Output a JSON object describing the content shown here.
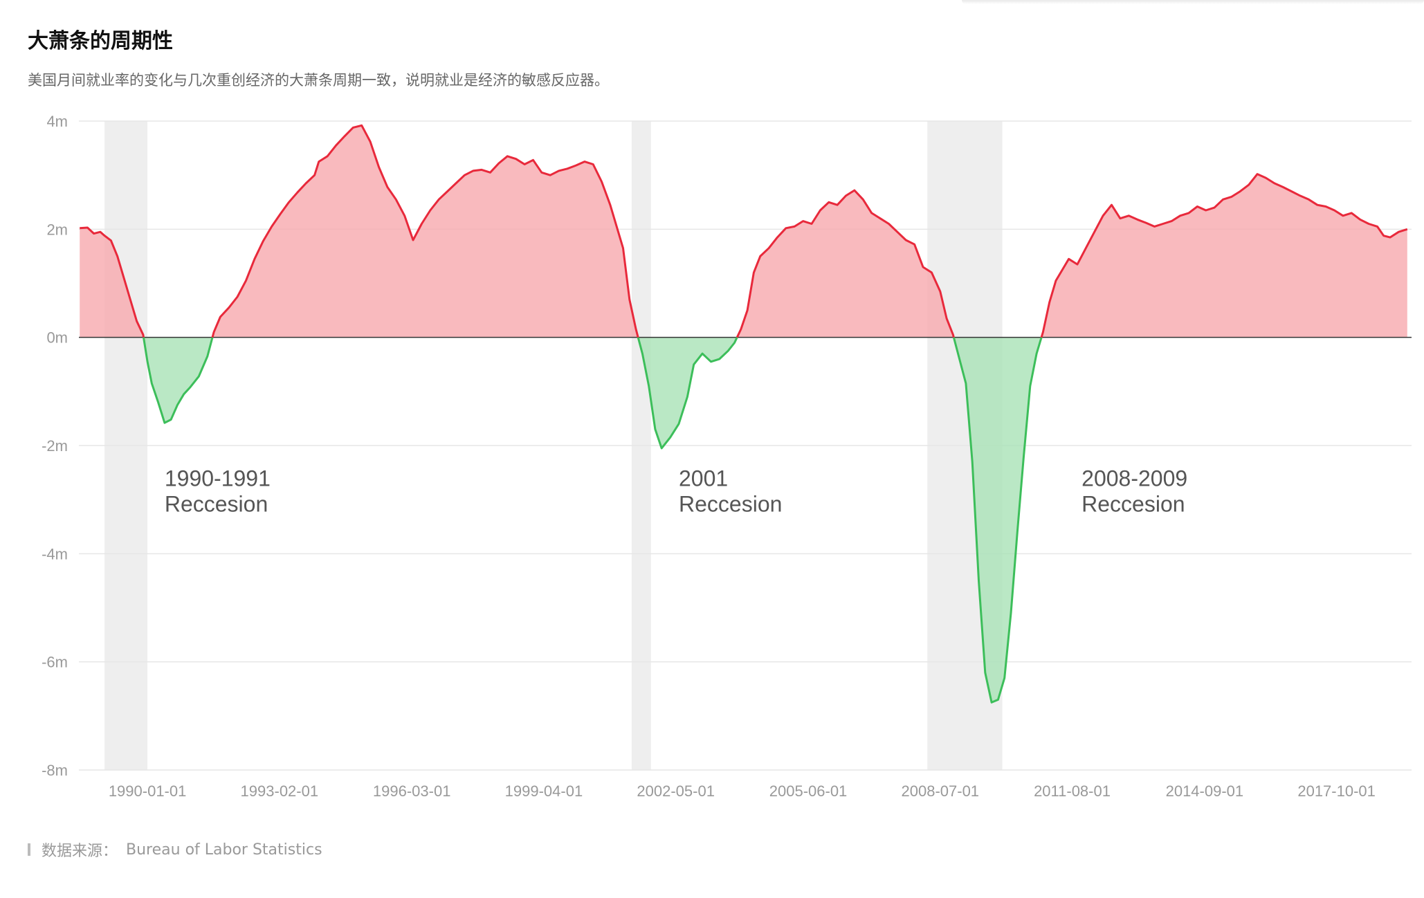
{
  "header": {
    "title": "大萧条的周期性",
    "subtitle": "美国月间就业率的变化与几次重创经济的大萧条周期一致，说明就业是经济的敏感反应器。"
  },
  "footer": {
    "source_label": "数据来源：",
    "source_value": "Bureau of Labor Statistics"
  },
  "colors": {
    "positive_line": "#e8293b",
    "positive_fill": "#f7a9ae",
    "negative_line": "#3cbe5a",
    "negative_fill": "#a9e2b6",
    "recession_band": "#eeeeee",
    "grid": "#e6e6e6",
    "zero_line": "#333333",
    "tick_text": "#999999",
    "annotation_text": "#555555"
  },
  "chart_data": {
    "type": "area",
    "title": "大萧条的周期性",
    "xlabel": "",
    "ylabel": "",
    "x_unit": "year",
    "xlim": [
      1988.4,
      2019.5
    ],
    "ylim": [
      -8,
      4
    ],
    "y_ticks": [
      4,
      2,
      0,
      -2,
      -4,
      -6,
      -8
    ],
    "y_tick_labels": [
      "4m",
      "2m",
      "0m",
      "-2m",
      "-4m",
      "-6m",
      "-8m"
    ],
    "x_ticks": [
      1990.0,
      1993.08,
      1996.17,
      1999.25,
      2002.33,
      2005.42,
      2008.5,
      2011.58,
      2014.67,
      2017.75
    ],
    "x_tick_labels": [
      "1990-01-01",
      "1993-02-01",
      "1996-03-01",
      "1999-04-01",
      "2002-05-01",
      "2005-06-01",
      "2008-07-01",
      "2011-08-01",
      "2014-09-01",
      "2017-10-01"
    ],
    "grid": true,
    "recessions": [
      {
        "start": 1989.0,
        "end": 1990.0,
        "label_line1": "1990-1991",
        "label_line2": "Reccesion",
        "label_x": 1990.4,
        "label_y": -2.75
      },
      {
        "start": 2001.3,
        "end": 2001.75,
        "label_line1": "2001",
        "label_line2": "Reccesion",
        "label_x": 2002.4,
        "label_y": -2.75
      },
      {
        "start": 2008.2,
        "end": 2009.95,
        "label_line1": "2008-2009",
        "label_line2": "Reccesion",
        "label_x": 2011.8,
        "label_y": -2.75
      }
    ],
    "series": [
      {
        "name": "",
        "points": [
          [
            1988.42,
            2.02
          ],
          [
            1988.6,
            2.03
          ],
          [
            1988.75,
            1.92
          ],
          [
            1988.9,
            1.95
          ],
          [
            1989.0,
            1.88
          ],
          [
            1989.15,
            1.79
          ],
          [
            1989.3,
            1.5
          ],
          [
            1989.45,
            1.1
          ],
          [
            1989.6,
            0.7
          ],
          [
            1989.75,
            0.3
          ],
          [
            1989.9,
            0.05
          ],
          [
            1990.0,
            -0.45
          ],
          [
            1990.1,
            -0.85
          ],
          [
            1990.25,
            -1.2
          ],
          [
            1990.4,
            -1.58
          ],
          [
            1990.55,
            -1.52
          ],
          [
            1990.7,
            -1.25
          ],
          [
            1990.85,
            -1.05
          ],
          [
            1991.0,
            -0.92
          ],
          [
            1991.2,
            -0.72
          ],
          [
            1991.4,
            -0.35
          ],
          [
            1991.55,
            0.1
          ],
          [
            1991.7,
            0.38
          ],
          [
            1991.9,
            0.55
          ],
          [
            1992.1,
            0.75
          ],
          [
            1992.3,
            1.05
          ],
          [
            1992.5,
            1.45
          ],
          [
            1992.7,
            1.78
          ],
          [
            1992.9,
            2.05
          ],
          [
            1993.1,
            2.28
          ],
          [
            1993.3,
            2.5
          ],
          [
            1993.5,
            2.68
          ],
          [
            1993.7,
            2.85
          ],
          [
            1993.9,
            3.0
          ],
          [
            1994.0,
            3.25
          ],
          [
            1994.2,
            3.35
          ],
          [
            1994.4,
            3.55
          ],
          [
            1994.6,
            3.72
          ],
          [
            1994.8,
            3.88
          ],
          [
            1995.0,
            3.92
          ],
          [
            1995.2,
            3.62
          ],
          [
            1995.4,
            3.15
          ],
          [
            1995.6,
            2.78
          ],
          [
            1995.8,
            2.55
          ],
          [
            1996.0,
            2.25
          ],
          [
            1996.2,
            1.8
          ],
          [
            1996.4,
            2.1
          ],
          [
            1996.6,
            2.35
          ],
          [
            1996.8,
            2.55
          ],
          [
            1997.0,
            2.7
          ],
          [
            1997.2,
            2.85
          ],
          [
            1997.4,
            3.0
          ],
          [
            1997.6,
            3.08
          ],
          [
            1997.8,
            3.1
          ],
          [
            1998.0,
            3.05
          ],
          [
            1998.2,
            3.22
          ],
          [
            1998.4,
            3.35
          ],
          [
            1998.6,
            3.3
          ],
          [
            1998.8,
            3.2
          ],
          [
            1999.0,
            3.28
          ],
          [
            1999.2,
            3.05
          ],
          [
            1999.4,
            3.0
          ],
          [
            1999.6,
            3.08
          ],
          [
            1999.8,
            3.12
          ],
          [
            2000.0,
            3.18
          ],
          [
            2000.2,
            3.25
          ],
          [
            2000.4,
            3.2
          ],
          [
            2000.6,
            2.88
          ],
          [
            2000.8,
            2.45
          ],
          [
            2000.95,
            2.05
          ],
          [
            2001.1,
            1.65
          ],
          [
            2001.25,
            0.7
          ],
          [
            2001.4,
            0.15
          ],
          [
            2001.55,
            -0.3
          ],
          [
            2001.7,
            -0.9
          ],
          [
            2001.85,
            -1.7
          ],
          [
            2002.0,
            -2.05
          ],
          [
            2002.2,
            -1.85
          ],
          [
            2002.4,
            -1.6
          ],
          [
            2002.6,
            -1.1
          ],
          [
            2002.75,
            -0.5
          ],
          [
            2002.95,
            -0.3
          ],
          [
            2003.15,
            -0.45
          ],
          [
            2003.35,
            -0.4
          ],
          [
            2003.55,
            -0.25
          ],
          [
            2003.7,
            -0.1
          ],
          [
            2003.85,
            0.15
          ],
          [
            2004.0,
            0.5
          ],
          [
            2004.15,
            1.2
          ],
          [
            2004.3,
            1.5
          ],
          [
            2004.5,
            1.65
          ],
          [
            2004.7,
            1.85
          ],
          [
            2004.9,
            2.02
          ],
          [
            2005.1,
            2.05
          ],
          [
            2005.3,
            2.15
          ],
          [
            2005.5,
            2.1
          ],
          [
            2005.7,
            2.35
          ],
          [
            2005.9,
            2.5
          ],
          [
            2006.1,
            2.45
          ],
          [
            2006.3,
            2.62
          ],
          [
            2006.5,
            2.72
          ],
          [
            2006.7,
            2.55
          ],
          [
            2006.9,
            2.3
          ],
          [
            2007.1,
            2.2
          ],
          [
            2007.3,
            2.1
          ],
          [
            2007.5,
            1.95
          ],
          [
            2007.7,
            1.8
          ],
          [
            2007.9,
            1.72
          ],
          [
            2008.1,
            1.3
          ],
          [
            2008.3,
            1.2
          ],
          [
            2008.5,
            0.85
          ],
          [
            2008.65,
            0.35
          ],
          [
            2008.8,
            0.05
          ],
          [
            2008.95,
            -0.4
          ],
          [
            2009.1,
            -0.85
          ],
          [
            2009.25,
            -2.3
          ],
          [
            2009.4,
            -4.5
          ],
          [
            2009.55,
            -6.2
          ],
          [
            2009.7,
            -6.75
          ],
          [
            2009.85,
            -6.7
          ],
          [
            2010.0,
            -6.3
          ],
          [
            2010.15,
            -5.1
          ],
          [
            2010.3,
            -3.6
          ],
          [
            2010.45,
            -2.2
          ],
          [
            2010.6,
            -0.9
          ],
          [
            2010.75,
            -0.3
          ],
          [
            2010.9,
            0.1
          ],
          [
            2011.05,
            0.65
          ],
          [
            2011.2,
            1.05
          ],
          [
            2011.35,
            1.25
          ],
          [
            2011.5,
            1.45
          ],
          [
            2011.7,
            1.35
          ],
          [
            2011.9,
            1.65
          ],
          [
            2012.1,
            1.95
          ],
          [
            2012.3,
            2.25
          ],
          [
            2012.5,
            2.45
          ],
          [
            2012.7,
            2.2
          ],
          [
            2012.9,
            2.25
          ],
          [
            2013.1,
            2.18
          ],
          [
            2013.3,
            2.12
          ],
          [
            2013.5,
            2.05
          ],
          [
            2013.7,
            2.1
          ],
          [
            2013.9,
            2.15
          ],
          [
            2014.1,
            2.25
          ],
          [
            2014.3,
            2.3
          ],
          [
            2014.5,
            2.42
          ],
          [
            2014.7,
            2.35
          ],
          [
            2014.9,
            2.4
          ],
          [
            2015.1,
            2.55
          ],
          [
            2015.3,
            2.6
          ],
          [
            2015.5,
            2.7
          ],
          [
            2015.7,
            2.82
          ],
          [
            2015.9,
            3.02
          ],
          [
            2016.1,
            2.95
          ],
          [
            2016.3,
            2.85
          ],
          [
            2016.5,
            2.78
          ],
          [
            2016.7,
            2.7
          ],
          [
            2016.9,
            2.62
          ],
          [
            2017.1,
            2.55
          ],
          [
            2017.3,
            2.45
          ],
          [
            2017.5,
            2.42
          ],
          [
            2017.7,
            2.35
          ],
          [
            2017.9,
            2.25
          ],
          [
            2018.1,
            2.3
          ],
          [
            2018.3,
            2.18
          ],
          [
            2018.5,
            2.1
          ],
          [
            2018.7,
            2.05
          ],
          [
            2018.85,
            1.88
          ],
          [
            2019.0,
            1.85
          ],
          [
            2019.2,
            1.95
          ],
          [
            2019.4,
            2.0
          ]
        ]
      }
    ]
  }
}
